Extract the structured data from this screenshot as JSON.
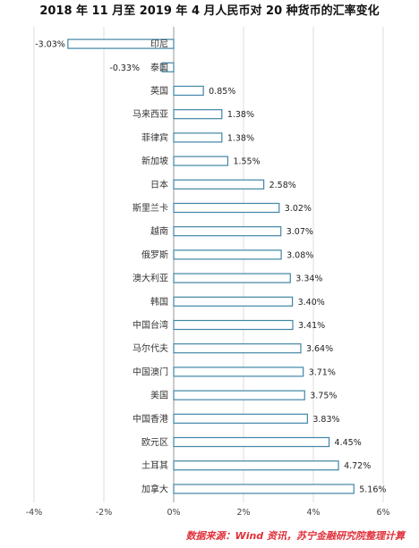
{
  "chart_data": {
    "type": "bar",
    "orientation": "horizontal",
    "title": "2018 年 11 月至 2019 年 4 月人民币对 20 种货币的汇率变化",
    "categories": [
      "印尼",
      "泰国",
      "英国",
      "马来西亚",
      "菲律宾",
      "新加坡",
      "日本",
      "斯里兰卡",
      "越南",
      "俄罗斯",
      "澳大利亚",
      "韩国",
      "中国台湾",
      "马尔代夫",
      "中国澳门",
      "美国",
      "中国香港",
      "欧元区",
      "土耳其",
      "加拿大"
    ],
    "values": [
      -3.03,
      -0.33,
      0.85,
      1.38,
      1.38,
      1.55,
      2.58,
      3.02,
      3.07,
      3.08,
      3.34,
      3.4,
      3.41,
      3.64,
      3.71,
      3.75,
      3.83,
      4.45,
      4.72,
      5.16
    ],
    "value_labels": [
      "-3.03%",
      "-0.33%",
      "0.85%",
      "1.38%",
      "1.38%",
      "1.55%",
      "2.58%",
      "3.02%",
      "3.07%",
      "3.08%",
      "3.34%",
      "3.40%",
      "3.41%",
      "3.64%",
      "3.71%",
      "3.75%",
      "3.83%",
      "4.45%",
      "4.72%",
      "5.16%"
    ],
    "xlim": [
      -4,
      6
    ],
    "xticks": [
      -4,
      -2,
      0,
      2,
      4,
      6
    ],
    "xtick_labels": [
      "-4%",
      "-2%",
      "0%",
      "2%",
      "4%",
      "6%"
    ],
    "grid": true,
    "legend": "none"
  },
  "source_note": "数据来源：Wind 资讯，苏宁金融研究院整理计算",
  "colors": {
    "bar_stroke": "#3f86a6",
    "bar_fill": "#ffffff",
    "source_text": "#e0303a"
  }
}
